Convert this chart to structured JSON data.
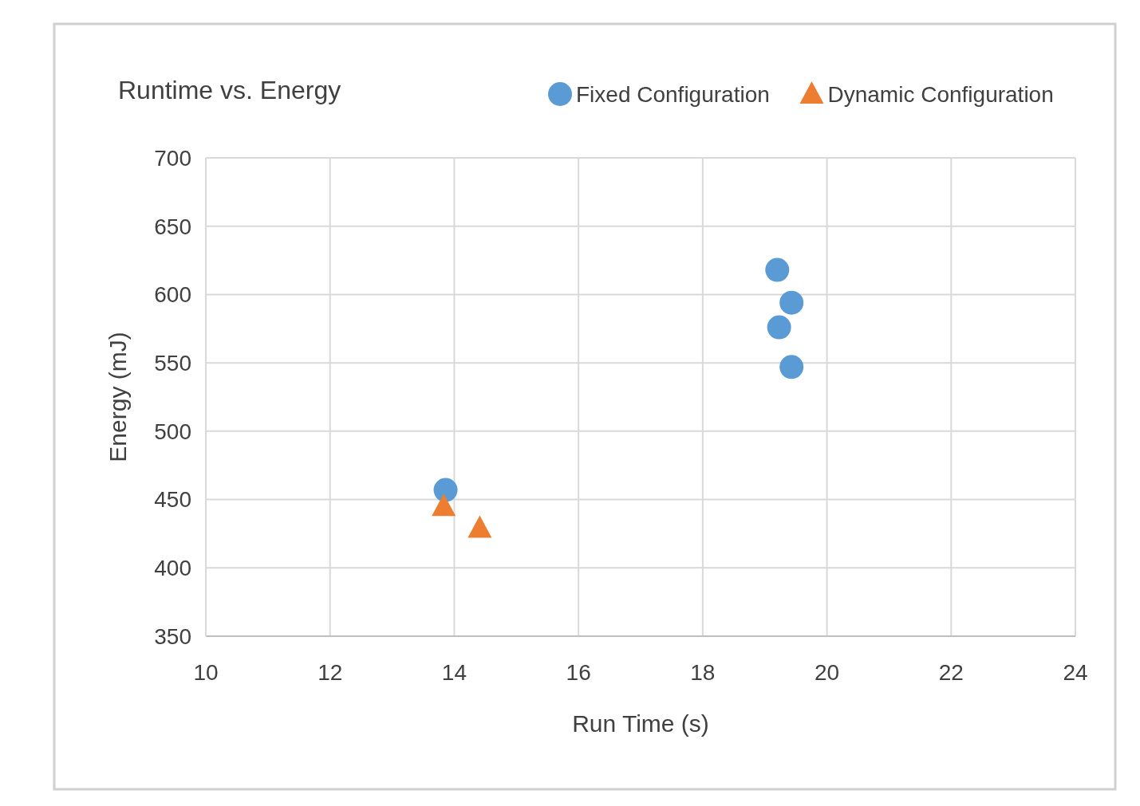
{
  "chart_data": {
    "type": "scatter",
    "title": "Runtime vs. Energy",
    "xlabel": "Run Time (s)",
    "ylabel": "Energy (mJ)",
    "xlim": [
      10,
      24
    ],
    "xticks": [
      10,
      12,
      14,
      16,
      18,
      20,
      22,
      24
    ],
    "ylim": [
      350,
      700
    ],
    "yticks": [
      350,
      400,
      450,
      500,
      550,
      600,
      650,
      700
    ],
    "grid": true,
    "legend": "top right",
    "series": [
      {
        "name": "Fixed Configuration",
        "color": "#5b9bd5",
        "marker": "circle",
        "x": [
          19.2,
          19.43,
          19.23,
          19.43,
          13.86
        ],
        "values": [
          618,
          594,
          576,
          547,
          457
        ]
      },
      {
        "name": "Dynamic Configuration",
        "color": "#ed7d31",
        "marker": "triangle",
        "x": [
          13.83,
          14.41
        ],
        "values": [
          445,
          429
        ]
      }
    ]
  }
}
